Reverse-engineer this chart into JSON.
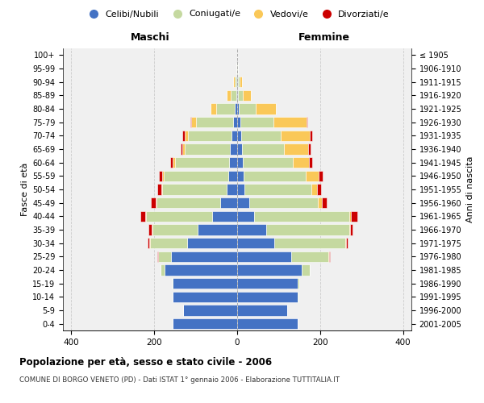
{
  "age_groups": [
    "0-4",
    "5-9",
    "10-14",
    "15-19",
    "20-24",
    "25-29",
    "30-34",
    "35-39",
    "40-44",
    "45-49",
    "50-54",
    "55-59",
    "60-64",
    "65-69",
    "70-74",
    "75-79",
    "80-84",
    "85-89",
    "90-94",
    "95-99",
    "100+"
  ],
  "birth_years": [
    "2001-2005",
    "1996-2000",
    "1991-1995",
    "1986-1990",
    "1981-1985",
    "1976-1980",
    "1971-1975",
    "1966-1970",
    "1961-1965",
    "1956-1960",
    "1951-1955",
    "1946-1950",
    "1941-1945",
    "1936-1940",
    "1931-1935",
    "1926-1930",
    "1921-1925",
    "1916-1920",
    "1911-1915",
    "1906-1910",
    "≤ 1905"
  ],
  "males": {
    "celibi": [
      155,
      130,
      155,
      155,
      175,
      160,
      120,
      95,
      60,
      40,
      25,
      22,
      20,
      17,
      14,
      10,
      5,
      2,
      1,
      0,
      0
    ],
    "coniugati": [
      0,
      0,
      1,
      2,
      10,
      30,
      90,
      110,
      160,
      155,
      155,
      155,
      130,
      110,
      105,
      90,
      45,
      14,
      4,
      1,
      0
    ],
    "vedovi": [
      0,
      0,
      0,
      0,
      0,
      0,
      1,
      1,
      2,
      2,
      3,
      4,
      5,
      5,
      8,
      10,
      15,
      10,
      4,
      1,
      0
    ],
    "divorziati": [
      0,
      0,
      0,
      0,
      0,
      2,
      5,
      7,
      12,
      12,
      10,
      8,
      6,
      5,
      5,
      3,
      0,
      0,
      0,
      0,
      0
    ]
  },
  "females": {
    "nubili": [
      145,
      120,
      145,
      145,
      155,
      130,
      90,
      70,
      40,
      30,
      18,
      16,
      14,
      12,
      10,
      8,
      4,
      2,
      1,
      0,
      0
    ],
    "coniugate": [
      0,
      0,
      2,
      5,
      20,
      90,
      170,
      200,
      230,
      165,
      160,
      150,
      120,
      100,
      95,
      80,
      40,
      12,
      5,
      1,
      0
    ],
    "vedove": [
      0,
      0,
      0,
      0,
      0,
      1,
      2,
      3,
      5,
      10,
      15,
      30,
      40,
      60,
      70,
      80,
      50,
      20,
      6,
      1,
      0
    ],
    "divorziate": [
      0,
      0,
      0,
      0,
      0,
      2,
      5,
      5,
      15,
      10,
      10,
      10,
      6,
      5,
      5,
      2,
      0,
      0,
      0,
      0,
      0
    ]
  },
  "colors": {
    "celibi": "#4472C4",
    "coniugati": "#C5D9A0",
    "vedovi": "#FAC858",
    "divorziati": "#CC0000"
  },
  "title": "Popolazione per età, sesso e stato civile - 2006",
  "subtitle": "COMUNE DI BORGO VENETO (PD) - Dati ISTAT 1° gennaio 2006 - Elaborazione TUTTITALIA.IT",
  "xlabel_left": "Maschi",
  "xlabel_right": "Femmine",
  "ylabel_left": "Fasce di età",
  "ylabel_right": "Anni di nascita",
  "xlim": 420,
  "bg_color": "#f0f0f0",
  "grid_color": "#cccccc",
  "legend_labels": [
    "Celibi/Nubili",
    "Coniugati/e",
    "Vedovi/e",
    "Divorziati/e"
  ]
}
